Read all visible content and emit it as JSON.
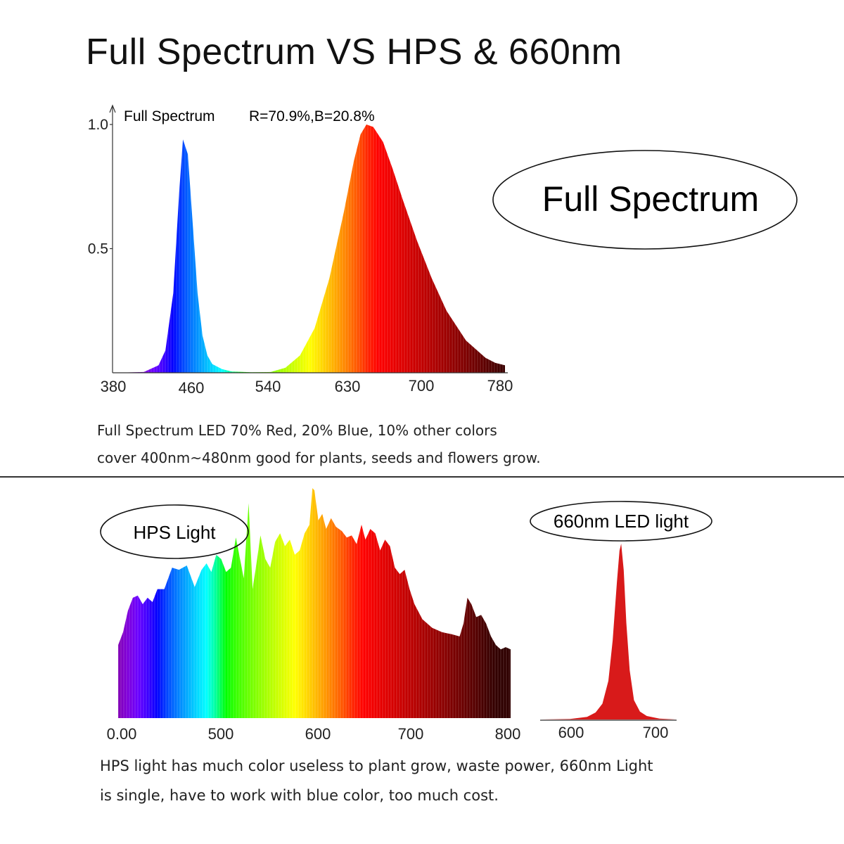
{
  "title": "Full Spectrum VS HPS & 660nm",
  "captions": {
    "top_line1": "Full Spectrum LED 70% Red, 20% Blue, 10% other colors",
    "top_line2": "cover 400nm~480nm good for plants, seeds and flowers grow.",
    "bottom_line1": "HPS light has much color useless to plant grow, waste power, 660nm Light",
    "bottom_line2": "is single, have to work with blue color, too much cost."
  },
  "labels": {
    "full_spectrum_oval": "Full Spectrum",
    "hps_oval": "HPS Light",
    "led660_oval": "660nm LED light"
  },
  "chart_data": [
    {
      "type": "area",
      "title": "Full Spectrum",
      "subtitle": "R=70.9%,B=20.8%",
      "xlabel": "",
      "ylabel": "",
      "xlim": [
        380,
        780
      ],
      "ylim": [
        0,
        1.0
      ],
      "x_ticks": [
        "380",
        "460",
        "540",
        "630",
        "700",
        "780"
      ],
      "y_ticks": [
        "0.5",
        "1.0"
      ],
      "fill": "wavelength-gradient",
      "x": [
        380,
        410,
        425,
        432,
        440,
        446,
        450,
        455,
        460,
        465,
        470,
        475,
        480,
        490,
        500,
        520,
        540,
        555,
        570,
        585,
        600,
        615,
        625,
        632,
        638,
        645,
        655,
        665,
        675,
        690,
        705,
        720,
        740,
        760,
        770,
        780
      ],
      "values": [
        0,
        0.003,
        0.03,
        0.09,
        0.32,
        0.72,
        0.94,
        0.88,
        0.6,
        0.32,
        0.15,
        0.07,
        0.035,
        0.015,
        0.005,
        0.002,
        0.003,
        0.02,
        0.07,
        0.18,
        0.38,
        0.65,
        0.85,
        0.96,
        1.0,
        0.99,
        0.93,
        0.82,
        0.7,
        0.53,
        0.38,
        0.25,
        0.13,
        0.06,
        0.04,
        0.03
      ]
    },
    {
      "type": "area",
      "title": "HPS Light",
      "xlabel": "",
      "ylabel": "",
      "xlim": [
        400,
        800
      ],
      "x_ticks": [
        "0.00",
        "500",
        "600",
        "700",
        "800"
      ],
      "fill": "wavelength-gradient",
      "x": [
        400,
        405,
        410,
        415,
        420,
        425,
        430,
        435,
        440,
        447,
        455,
        462,
        470,
        478,
        485,
        490,
        495,
        500,
        505,
        510,
        515,
        520,
        528,
        533,
        537,
        541,
        545,
        550,
        555,
        560,
        565,
        570,
        575,
        580,
        585,
        590,
        595,
        598,
        600,
        604,
        608,
        612,
        617,
        622,
        628,
        633,
        638,
        643,
        648,
        652,
        657,
        662,
        667,
        672,
        677,
        682,
        687,
        692,
        697,
        702,
        710,
        720,
        730,
        740,
        748,
        752,
        756,
        760,
        765,
        770,
        775,
        780,
        785,
        790,
        795,
        800
      ],
      "values": [
        0.34,
        0.4,
        0.5,
        0.56,
        0.57,
        0.53,
        0.56,
        0.54,
        0.6,
        0.6,
        0.7,
        0.69,
        0.71,
        0.61,
        0.69,
        0.72,
        0.68,
        0.76,
        0.74,
        0.68,
        0.7,
        0.84,
        0.65,
        1.0,
        0.6,
        0.72,
        0.85,
        0.74,
        0.7,
        0.82,
        0.86,
        0.8,
        0.83,
        0.76,
        0.78,
        0.86,
        0.9,
        1.07,
        1.06,
        0.92,
        0.95,
        0.88,
        0.93,
        0.89,
        0.87,
        0.84,
        0.85,
        0.81,
        0.9,
        0.83,
        0.88,
        0.86,
        0.78,
        0.83,
        0.8,
        0.7,
        0.67,
        0.69,
        0.6,
        0.53,
        0.46,
        0.42,
        0.4,
        0.39,
        0.38,
        0.44,
        0.56,
        0.53,
        0.47,
        0.48,
        0.44,
        0.38,
        0.34,
        0.32,
        0.33,
        0.32
      ]
    },
    {
      "type": "area",
      "title": "660nm LED light",
      "xlabel": "",
      "ylabel": "",
      "xlim": [
        565,
        725
      ],
      "x_ticks": [
        "600",
        "700"
      ],
      "fill": "#d81a1a",
      "x": [
        565,
        600,
        620,
        630,
        638,
        645,
        650,
        655,
        658,
        660,
        663,
        666,
        670,
        675,
        682,
        690,
        705,
        725
      ],
      "values": [
        0,
        0.003,
        0.015,
        0.04,
        0.09,
        0.22,
        0.45,
        0.78,
        0.96,
        1.0,
        0.85,
        0.55,
        0.28,
        0.11,
        0.045,
        0.02,
        0.005,
        0
      ]
    }
  ]
}
